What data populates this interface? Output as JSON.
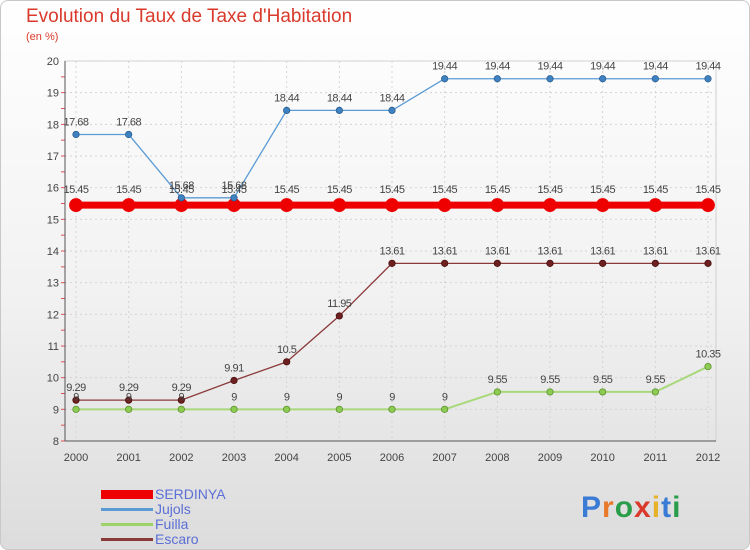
{
  "title": "Evolution du Taux de Taxe d'Habitation",
  "subtitle": "(en %)",
  "brand": "Proxiti",
  "chart_data": {
    "type": "line",
    "x": [
      "2000",
      "2001",
      "2002",
      "2003",
      "2004",
      "2005",
      "2006",
      "2007",
      "2008",
      "2009",
      "2010",
      "2011",
      "2012"
    ],
    "ylim": [
      8,
      20
    ],
    "yticks": [
      8,
      9,
      10,
      11,
      12,
      13,
      14,
      15,
      16,
      17,
      18,
      19,
      20
    ],
    "grid": true,
    "legend_position": "bottom-left",
    "series": [
      {
        "name": "SERDINYA",
        "color": "#ee0000",
        "values": [
          15.45,
          15.45,
          15.45,
          15.45,
          15.45,
          15.45,
          15.45,
          15.45,
          15.45,
          15.45,
          15.45,
          15.45,
          15.45
        ],
        "labels": [
          "15.45",
          "15.45",
          "15.45",
          "15.45",
          "15.45",
          "15.45",
          "15.45",
          "15.45",
          "15.45",
          "15.45",
          "15.45",
          "15.45",
          "15.45"
        ]
      },
      {
        "name": "Jujols",
        "color": "#5b9bd5",
        "values": [
          17.68,
          17.68,
          15.68,
          15.68,
          18.44,
          18.44,
          18.44,
          19.44,
          19.44,
          19.44,
          19.44,
          19.44,
          19.44
        ],
        "labels": [
          "17.68",
          "17.68",
          "15.68",
          "15.68",
          "18.44",
          "18.44",
          "18.44",
          "19.44",
          "19.44",
          "19.44",
          "19.44",
          "19.44",
          "19.44"
        ]
      },
      {
        "name": "Fuilla",
        "color": "#9ed36a",
        "values": [
          9,
          9,
          9,
          9,
          9,
          9,
          9,
          9,
          9.55,
          9.55,
          9.55,
          9.55,
          10.35
        ],
        "labels": [
          "9",
          "9",
          "9",
          "9",
          "9",
          "9",
          "9",
          "9",
          "9.55",
          "9.55",
          "9.55",
          "9.55",
          "10.35"
        ]
      },
      {
        "name": "Escaro",
        "color": "#8b3a3a",
        "values": [
          9.29,
          9.29,
          9.29,
          9.91,
          10.5,
          11.95,
          13.61,
          13.61,
          13.61,
          13.61,
          13.61,
          13.61,
          13.61
        ],
        "labels": [
          "9.29",
          "9.29",
          "9.29",
          "9.91",
          "10.5",
          "11.95",
          "13.61",
          "13.61",
          "13.61",
          "13.61",
          "13.61",
          "13.61",
          "13.61"
        ]
      }
    ]
  }
}
